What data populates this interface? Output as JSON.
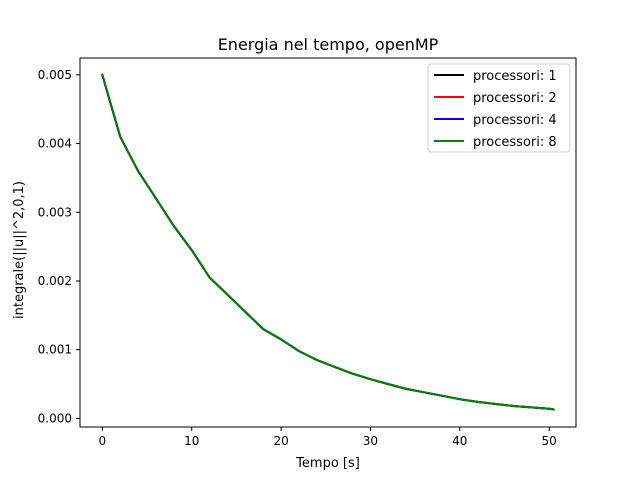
{
  "chart_data": {
    "type": "line",
    "title": "Energia nel tempo, openMP",
    "xlabel": "Tempo [s]",
    "ylabel": "integrale(||u||^2,0,1)",
    "xlim": [
      -2.5,
      53.0
    ],
    "ylim": [
      -0.000125,
      0.005245
    ],
    "xticks": [
      0,
      10,
      20,
      30,
      40,
      50
    ],
    "xtick_labels": [
      "0",
      "10",
      "20",
      "30",
      "40",
      "50"
    ],
    "yticks": [
      0.0,
      0.001,
      0.002,
      0.003,
      0.004,
      0.005
    ],
    "ytick_labels": [
      "0.000",
      "0.001",
      "0.002",
      "0.003",
      "0.004",
      "0.005"
    ],
    "grid": false,
    "legend_position": "top-right",
    "x": [
      0,
      2,
      4,
      6,
      8,
      10,
      12,
      14,
      16,
      18,
      20,
      22,
      24,
      26,
      28,
      30,
      32,
      34,
      36,
      38,
      40,
      42,
      44,
      46,
      48,
      50,
      50.5
    ],
    "series": [
      {
        "name": "processori: 1",
        "color": "#000000",
        "values": [
          0.005,
          0.0041,
          0.0036,
          0.0032,
          0.0028,
          0.00245,
          0.00205,
          0.0018,
          0.00155,
          0.0013,
          0.00115,
          0.00098,
          0.00085,
          0.00075,
          0.00065,
          0.00057,
          0.0005,
          0.00043,
          0.00038,
          0.00033,
          0.00028,
          0.00024,
          0.00021,
          0.00018,
          0.00016,
          0.00014,
          0.00013
        ]
      },
      {
        "name": "processori: 2",
        "color": "#ff0000",
        "values": [
          0.005,
          0.0041,
          0.0036,
          0.0032,
          0.0028,
          0.00245,
          0.00205,
          0.0018,
          0.00155,
          0.0013,
          0.00115,
          0.00098,
          0.00085,
          0.00075,
          0.00065,
          0.00057,
          0.0005,
          0.00043,
          0.00038,
          0.00033,
          0.00028,
          0.00024,
          0.00021,
          0.00018,
          0.00016,
          0.00014,
          0.00013
        ]
      },
      {
        "name": "processori: 4",
        "color": "#0000ff",
        "values": [
          0.005,
          0.0041,
          0.0036,
          0.0032,
          0.0028,
          0.00245,
          0.00205,
          0.0018,
          0.00155,
          0.0013,
          0.00115,
          0.00098,
          0.00085,
          0.00075,
          0.00065,
          0.00057,
          0.0005,
          0.00043,
          0.00038,
          0.00033,
          0.00028,
          0.00024,
          0.00021,
          0.00018,
          0.00016,
          0.00014,
          0.00013
        ]
      },
      {
        "name": "processori: 8",
        "color": "#008000",
        "values": [
          0.005,
          0.0041,
          0.0036,
          0.0032,
          0.0028,
          0.00245,
          0.00205,
          0.0018,
          0.00155,
          0.0013,
          0.00115,
          0.00098,
          0.00085,
          0.00075,
          0.00065,
          0.00057,
          0.0005,
          0.00043,
          0.00038,
          0.00033,
          0.00028,
          0.00024,
          0.00021,
          0.00018,
          0.00016,
          0.00014,
          0.00013
        ]
      }
    ]
  }
}
